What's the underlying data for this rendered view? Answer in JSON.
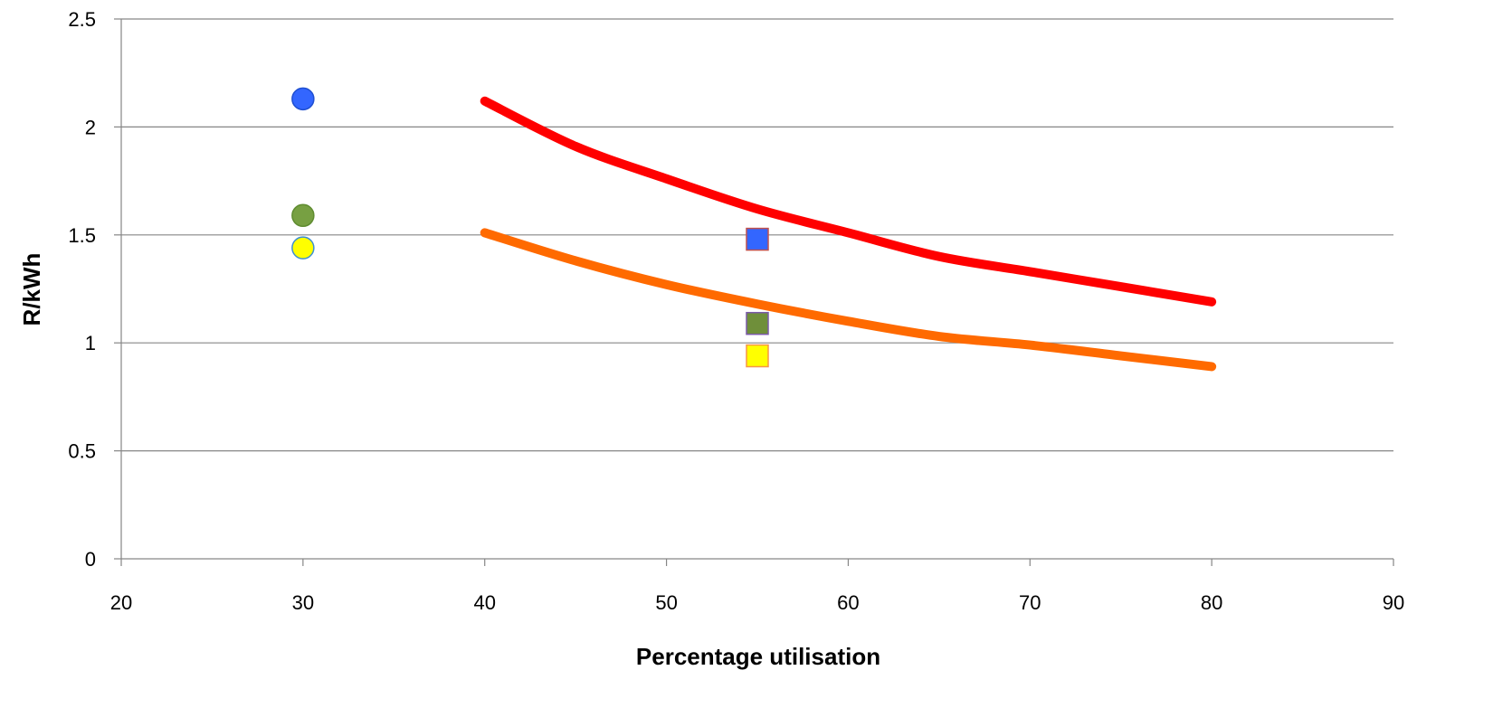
{
  "chart_data": {
    "type": "scatter",
    "title": "",
    "xlabel": "Percentage utilisation",
    "ylabel": "R/kWh",
    "xlim": [
      20,
      90
    ],
    "ylim": [
      0,
      2.5
    ],
    "x_ticks": [
      20,
      30,
      40,
      50,
      60,
      70,
      80,
      90
    ],
    "y_ticks": [
      0,
      0.5,
      1,
      1.5,
      2,
      2.5
    ],
    "y_tick_labels": [
      "0",
      "0.5",
      "1",
      "1.5",
      "2",
      "2.5"
    ],
    "x_tick_labels": [
      "20",
      "30",
      "40",
      "50",
      "60",
      "70",
      "80",
      "90"
    ],
    "grid": "horizontal",
    "legend": "none",
    "lines": [
      {
        "color": "#ff0000",
        "points": [
          [
            40,
            2.12
          ],
          [
            45,
            1.91
          ],
          [
            50,
            1.76
          ],
          [
            55,
            1.62
          ],
          [
            60,
            1.51
          ],
          [
            65,
            1.4
          ],
          [
            70,
            1.33
          ],
          [
            75,
            1.26
          ],
          [
            80,
            1.19
          ]
        ]
      },
      {
        "color": "#ff6a00",
        "points": [
          [
            40,
            1.51
          ],
          [
            45,
            1.38
          ],
          [
            50,
            1.27
          ],
          [
            55,
            1.18
          ],
          [
            60,
            1.1
          ],
          [
            65,
            1.03
          ],
          [
            70,
            0.99
          ],
          [
            75,
            0.94
          ],
          [
            80,
            0.89
          ]
        ]
      }
    ],
    "points": [
      {
        "x": 30,
        "y": 2.13,
        "shape": "circle",
        "fill": "#3366ff",
        "stroke": "#1f4fd1"
      },
      {
        "x": 30,
        "y": 1.59,
        "shape": "circle",
        "fill": "#77a042",
        "stroke": "#5f8c30"
      },
      {
        "x": 30,
        "y": 1.44,
        "shape": "circle",
        "fill": "#ffff00",
        "stroke": "#3d8fd1"
      },
      {
        "x": 55,
        "y": 1.48,
        "shape": "square",
        "fill": "#3366ff",
        "stroke": "#c0504d"
      },
      {
        "x": 55,
        "y": 1.09,
        "shape": "square",
        "fill": "#6f8f3a",
        "stroke": "#7a5aa8"
      },
      {
        "x": 55,
        "y": 0.94,
        "shape": "square",
        "fill": "#ffff00",
        "stroke": "#f79646"
      }
    ]
  }
}
